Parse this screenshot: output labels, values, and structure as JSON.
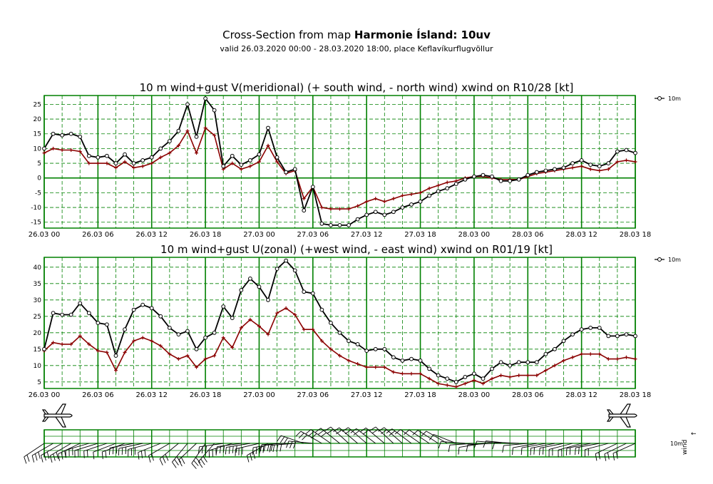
{
  "page": {
    "title_prefix": "Cross-Section from map ",
    "title_bold": "Harmonie Ísland: 10uv",
    "subtitle": "valid 26.03.2020 00:00 - 28.03.2020 18:00, place Keflavíkurflugvöllur"
  },
  "colors": {
    "grid": "#008000",
    "wind": "#000000",
    "gust": "#8b0000",
    "background": "#ffffff"
  },
  "chart_data": [
    {
      "type": "line",
      "title": "10 m wind+gust V(meridional) (+ south wind, - north wind) xwind on R10/28 [kt]",
      "x_tick_labels": [
        "26.03 00",
        "26.03 06",
        "26.03 12",
        "26.03 18",
        "27.03 00",
        "27.03 06",
        "27.03 12",
        "27.03 18",
        "28.03 00",
        "28.03 06",
        "28.03 12",
        "28.03 18"
      ],
      "x_hours": [
        0,
        6,
        12,
        18,
        24,
        30,
        36,
        42,
        48,
        54,
        60,
        66
      ],
      "xlim": [
        0,
        66
      ],
      "ylim": [
        -17,
        28
      ],
      "yticks": [
        -15,
        -10,
        -5,
        0,
        5,
        10,
        15,
        20,
        25
      ],
      "legend": "10m",
      "series": [
        {
          "name": "wind",
          "x": [
            0,
            1,
            2,
            3,
            4,
            5,
            6,
            7,
            8,
            9,
            10,
            11,
            12,
            13,
            14,
            15,
            16,
            17,
            18,
            19,
            20,
            21,
            22,
            23,
            24,
            25,
            26,
            27,
            28,
            29,
            30,
            31,
            32,
            33,
            34,
            35,
            36,
            37,
            38,
            39,
            40,
            41,
            42,
            43,
            44,
            45,
            46,
            47,
            48,
            49,
            50,
            51,
            52,
            53,
            54,
            55,
            56,
            57,
            58,
            59,
            60,
            61,
            62,
            63,
            64,
            65,
            66
          ],
          "values": [
            10,
            15,
            14.5,
            15,
            14,
            7.5,
            7,
            7.5,
            5,
            8,
            5,
            6,
            7,
            10,
            12.5,
            16,
            25,
            14,
            27,
            23,
            4,
            7.5,
            4.5,
            6,
            8,
            17,
            7,
            2,
            3,
            -11,
            -3,
            -15.5,
            -16,
            -16,
            -16,
            -14,
            -12.5,
            -11.5,
            -12.5,
            -11.5,
            -10,
            -9,
            -8,
            -6,
            -4.5,
            -3.5,
            -2,
            -0.5,
            0.5,
            1,
            0.5,
            -1,
            -1,
            -0.5,
            1,
            2,
            2.5,
            3,
            3.5,
            5,
            6,
            4.5,
            4,
            5,
            9,
            9.5,
            8.5
          ]
        },
        {
          "name": "gust",
          "x": [
            0,
            1,
            2,
            3,
            4,
            5,
            6,
            7,
            8,
            9,
            10,
            11,
            12,
            13,
            14,
            15,
            16,
            17,
            18,
            19,
            20,
            21,
            22,
            23,
            24,
            25,
            26,
            27,
            28,
            29,
            30,
            31,
            32,
            33,
            34,
            35,
            36,
            37,
            38,
            39,
            40,
            41,
            42,
            43,
            44,
            45,
            46,
            47,
            48,
            49,
            50,
            51,
            52,
            53,
            54,
            55,
            56,
            57,
            58,
            59,
            60,
            61,
            62,
            63,
            64,
            65,
            66
          ],
          "values": [
            8.5,
            10,
            9.5,
            9.5,
            9,
            5,
            5,
            5,
            3.5,
            5.5,
            3.5,
            4,
            5,
            7,
            8.5,
            11,
            16,
            8.5,
            17,
            14.5,
            3,
            5,
            3,
            4,
            5.5,
            11,
            5.5,
            1.5,
            2.5,
            -7,
            -3,
            -10,
            -10.5,
            -10.5,
            -10.5,
            -9.5,
            -8,
            -7,
            -8,
            -7,
            -6,
            -5.5,
            -5,
            -3.5,
            -2.5,
            -1.5,
            -1,
            0,
            0.5,
            0.5,
            0,
            -0.5,
            -0.5,
            -0.5,
            0.5,
            1.5,
            2,
            2.5,
            3,
            3.5,
            4,
            3,
            2.5,
            3,
            5.5,
            6,
            5.5
          ]
        }
      ]
    },
    {
      "type": "line",
      "title": "10 m wind+gust U(zonal) (+west wind, - east wind) xwind on R01/19 [kt]",
      "x_tick_labels": [
        "26.03 00",
        "26.03 06",
        "26.03 12",
        "26.03 18",
        "27.03 00",
        "27.03 06",
        "27.03 12",
        "27.03 18",
        "28.03 00",
        "28.03 06",
        "28.03 12",
        "28.03 18"
      ],
      "x_hours": [
        0,
        6,
        12,
        18,
        24,
        30,
        36,
        42,
        48,
        54,
        60,
        66
      ],
      "xlim": [
        0,
        66
      ],
      "ylim": [
        3,
        43
      ],
      "yticks": [
        5,
        10,
        15,
        20,
        25,
        30,
        35,
        40
      ],
      "legend": "10m",
      "series": [
        {
          "name": "wind",
          "x": [
            0,
            1,
            2,
            3,
            4,
            5,
            6,
            7,
            8,
            9,
            10,
            11,
            12,
            13,
            14,
            15,
            16,
            17,
            18,
            19,
            20,
            21,
            22,
            23,
            24,
            25,
            26,
            27,
            28,
            29,
            30,
            31,
            32,
            33,
            34,
            35,
            36,
            37,
            38,
            39,
            40,
            41,
            42,
            43,
            44,
            45,
            46,
            47,
            48,
            49,
            50,
            51,
            52,
            53,
            54,
            55,
            56,
            57,
            58,
            59,
            60,
            61,
            62,
            63,
            64,
            65,
            66
          ],
          "values": [
            15,
            26,
            25.5,
            25.5,
            29,
            26,
            23,
            22.5,
            13,
            21,
            27,
            28.5,
            27.5,
            25,
            21.5,
            19.5,
            20.5,
            15,
            18.5,
            20,
            28,
            24.5,
            33,
            36.5,
            34,
            30,
            39.5,
            42,
            39,
            32.5,
            32,
            27,
            23,
            20,
            17.5,
            16.5,
            14.5,
            15,
            15,
            12.5,
            11.5,
            12,
            11.5,
            9,
            7,
            6,
            5,
            6.5,
            7.5,
            6,
            9,
            11,
            10,
            11,
            11,
            11,
            13.5,
            15,
            17.5,
            19.5,
            21,
            21.5,
            21.5,
            19,
            19,
            19.5,
            19
          ]
        },
        {
          "name": "gust",
          "x": [
            0,
            1,
            2,
            3,
            4,
            5,
            6,
            7,
            8,
            9,
            10,
            11,
            12,
            13,
            14,
            15,
            16,
            17,
            18,
            19,
            20,
            21,
            22,
            23,
            24,
            25,
            26,
            27,
            28,
            29,
            30,
            31,
            32,
            33,
            34,
            35,
            36,
            37,
            38,
            39,
            40,
            41,
            42,
            43,
            44,
            45,
            46,
            47,
            48,
            49,
            50,
            51,
            52,
            53,
            54,
            55,
            56,
            57,
            58,
            59,
            60,
            61,
            62,
            63,
            64,
            65,
            66
          ],
          "values": [
            14.5,
            17,
            16.5,
            16.5,
            19,
            16.5,
            14.5,
            14,
            8.5,
            14,
            17.5,
            18.5,
            17.5,
            16,
            13.5,
            12,
            13,
            9.5,
            12,
            13,
            18.5,
            15.5,
            21.5,
            24,
            22,
            19.5,
            26,
            27.5,
            25.5,
            21,
            21,
            17.5,
            15,
            13,
            11.5,
            10.5,
            9.5,
            9.5,
            9.5,
            8,
            7.5,
            7.5,
            7.5,
            6,
            4.5,
            4,
            3.5,
            4.5,
            5.5,
            4.5,
            6,
            7,
            6.5,
            7,
            7,
            7,
            8.5,
            10,
            11.5,
            12.5,
            13.5,
            13.5,
            13.5,
            12,
            12,
            12.5,
            12
          ]
        }
      ]
    }
  ],
  "wind_panel": {
    "label_10m": "10m",
    "label_wind": "wind",
    "label_arrow": "↑",
    "left_aircraft_icon": "airplane-icon",
    "right_aircraft_icon": "airplane-icon"
  }
}
